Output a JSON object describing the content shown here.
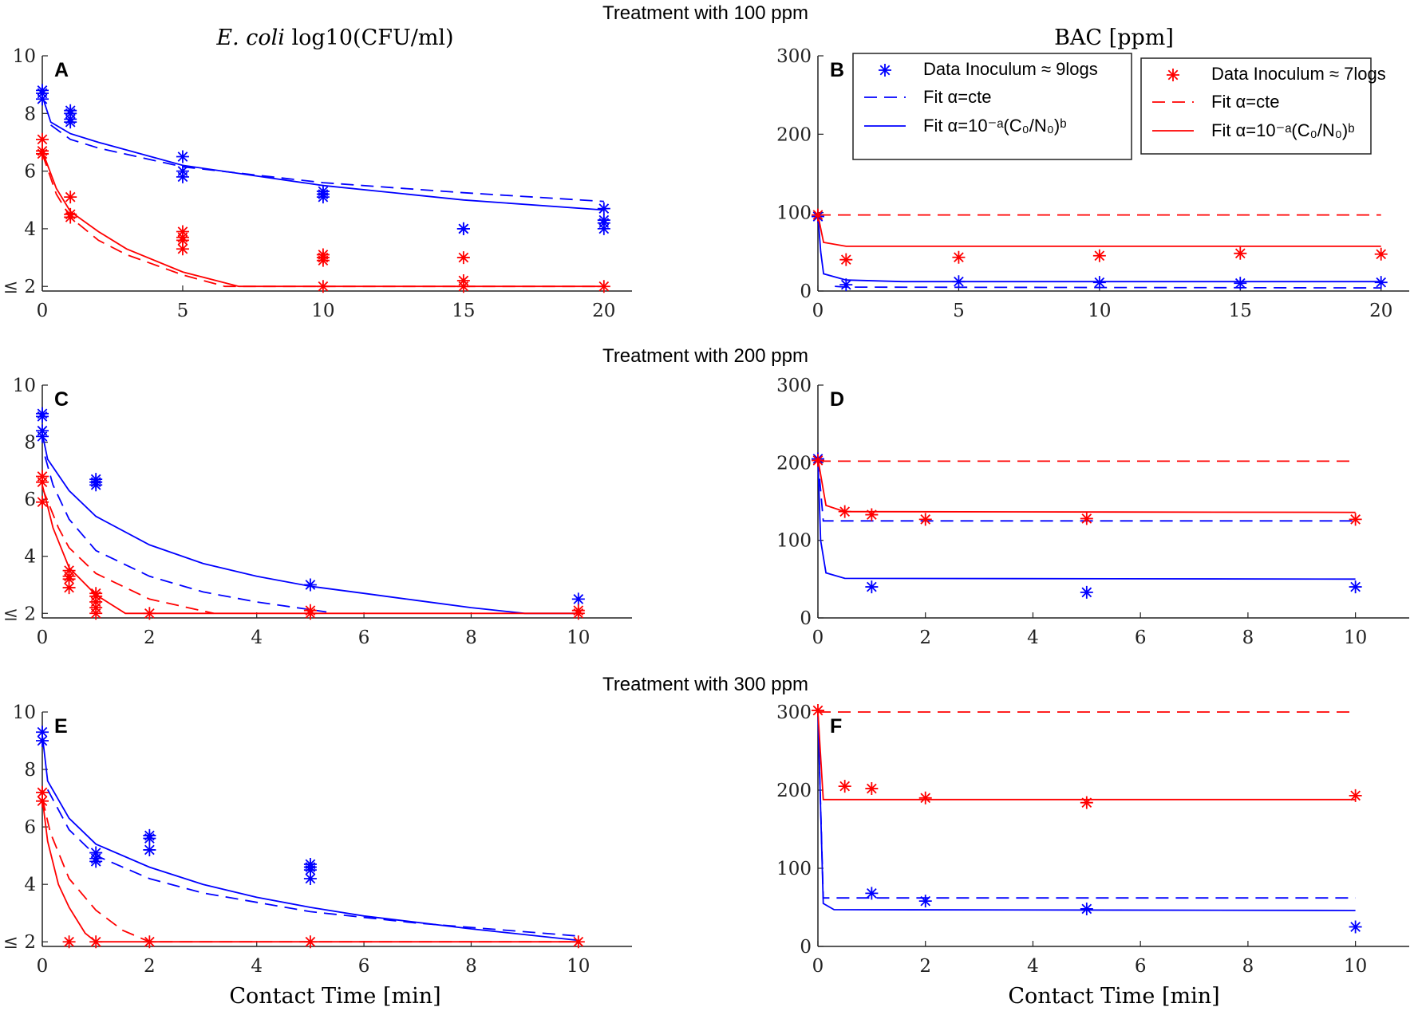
{
  "row_titles": [
    "Treatment with 100 ppm",
    "Treatment with 200 ppm",
    "Treatment with 300 ppm"
  ],
  "col_titles": {
    "left_italic": "E. coli",
    "left_rest": " log10(CFU/ml)",
    "right": "BAC [ppm]"
  },
  "xlabel": "Contact Time [min]",
  "colors": {
    "blue": "#0000ff",
    "red": "#ff0000"
  },
  "legend": [
    {
      "marker_color": "#0000ff",
      "items": [
        "Data Inoculum ≈ 9logs",
        "Fit α=cte",
        "Fit α=10⁻ᵃ(C₀/N₀)ᵇ"
      ]
    },
    {
      "marker_color": "#ff0000",
      "items": [
        "Data Inoculum ≈ 7logs",
        "Fit α=cte",
        "Fit α=10⁻ᵃ(C₀/N₀)ᵇ"
      ]
    }
  ],
  "chart_data": [
    {
      "id": "A",
      "type": "scatter+line",
      "row": 0,
      "col": 0,
      "xlim": [
        0,
        21
      ],
      "ylim": [
        1.84,
        10
      ],
      "xticks": [
        0,
        5,
        10,
        15,
        20
      ],
      "yticks": [
        2,
        4,
        6,
        8,
        10
      ],
      "ytick_labels": [
        "≤ 2",
        "4",
        "6",
        "8",
        "10"
      ],
      "series": [
        {
          "name": "Data Inoculum ≈ 9logs",
          "color": "blue",
          "kind": "points",
          "x": [
            0,
            0,
            0,
            1,
            1,
            1,
            1,
            5,
            5,
            5,
            10,
            10,
            10,
            15,
            15,
            20,
            20,
            20,
            20
          ],
          "y": [
            8.8,
            8.7,
            8.5,
            8.1,
            8.0,
            7.8,
            7.7,
            6.5,
            6.0,
            5.8,
            5.3,
            5.2,
            5.1,
            4.0,
            4.0,
            4.7,
            4.3,
            4.2,
            4.0
          ]
        },
        {
          "name": "Data Inoculum ≈ 7logs",
          "color": "red",
          "kind": "points",
          "x": [
            0,
            0,
            0,
            1,
            1,
            1,
            5,
            5,
            5,
            5,
            10,
            10,
            10,
            10,
            15,
            15,
            15,
            20
          ],
          "y": [
            7.1,
            6.7,
            6.6,
            5.1,
            4.5,
            4.4,
            3.9,
            3.7,
            3.6,
            3.3,
            3.1,
            3.0,
            2.9,
            2.0,
            3.0,
            2.2,
            2.0,
            2.0
          ]
        },
        {
          "name": "Fit α=cte (9logs)",
          "color": "blue",
          "kind": "dash",
          "x": [
            0.3,
            1,
            2,
            5,
            10,
            15,
            20
          ],
          "y": [
            7.6,
            7.1,
            6.8,
            6.15,
            5.6,
            5.25,
            4.95
          ]
        },
        {
          "name": "Fit α=10^-a(C0/N0)^b (9logs)",
          "color": "blue",
          "kind": "solid",
          "x": [
            0,
            0.3,
            1,
            2,
            5,
            10,
            15,
            20
          ],
          "y": [
            8.6,
            7.7,
            7.3,
            7.0,
            6.2,
            5.5,
            5.0,
            4.65
          ]
        },
        {
          "name": "Fit α=cte (7logs)",
          "color": "red",
          "kind": "dash",
          "x": [
            0,
            0.5,
            1,
            2,
            3,
            5,
            6.5,
            20
          ],
          "y": [
            6.6,
            5.2,
            4.4,
            3.6,
            3.1,
            2.4,
            2.0,
            2.0
          ]
        },
        {
          "name": "Fit α=10^-a(C0/N0)^b (7logs)",
          "color": "red",
          "kind": "solid",
          "x": [
            0,
            0.5,
            1,
            2,
            3,
            5,
            7,
            20
          ],
          "y": [
            6.7,
            5.4,
            4.6,
            3.9,
            3.3,
            2.5,
            2.0,
            2.0
          ]
        }
      ]
    },
    {
      "id": "B",
      "type": "scatter+line",
      "row": 0,
      "col": 1,
      "xlim": [
        0,
        21
      ],
      "ylim": [
        0,
        300
      ],
      "xticks": [
        0,
        5,
        10,
        15,
        20
      ],
      "yticks": [
        0,
        100,
        200,
        300
      ],
      "ytick_labels": [
        "0",
        "100",
        "200",
        "300"
      ],
      "series": [
        {
          "name": "Data Inoculum ≈ 9logs",
          "color": "blue",
          "kind": "points",
          "x": [
            0,
            1,
            5,
            10,
            15,
            20
          ],
          "y": [
            95,
            8,
            12,
            11,
            10,
            11
          ]
        },
        {
          "name": "Data Inoculum ≈ 7logs",
          "color": "red",
          "kind": "points",
          "x": [
            0,
            1,
            5,
            10,
            15,
            20
          ],
          "y": [
            97,
            40,
            43,
            45,
            48,
            47
          ]
        },
        {
          "name": "Fit α=cte (9logs)",
          "color": "blue",
          "kind": "dash",
          "x": [
            0.6,
            1,
            20
          ],
          "y": [
            6,
            5,
            4
          ]
        },
        {
          "name": "Fit α=10^-a(C0/N0)^b (9logs)",
          "color": "blue",
          "kind": "solid",
          "x": [
            0,
            0.1,
            0.2,
            1,
            3,
            20
          ],
          "y": [
            97,
            50,
            22,
            14,
            12,
            12
          ]
        },
        {
          "name": "Fit α=cte (7logs)",
          "color": "red",
          "kind": "dash",
          "x": [
            0,
            20
          ],
          "y": [
            97,
            97
          ]
        },
        {
          "name": "Fit α=10^-a(C0/N0)^b (7logs)",
          "color": "red",
          "kind": "solid",
          "x": [
            0,
            0.2,
            1,
            20
          ],
          "y": [
            97,
            62,
            57,
            57
          ]
        }
      ]
    },
    {
      "id": "C",
      "type": "scatter+line",
      "row": 1,
      "col": 0,
      "xlim": [
        0,
        11
      ],
      "ylim": [
        1.84,
        10
      ],
      "xticks": [
        0,
        2,
        4,
        6,
        8,
        10
      ],
      "yticks": [
        2,
        4,
        6,
        8,
        10
      ],
      "ytick_labels": [
        "≤ 2",
        "4",
        "6",
        "8",
        "10"
      ],
      "series": [
        {
          "name": "Data Inoculum ≈ 9logs",
          "color": "blue",
          "kind": "points",
          "x": [
            0,
            0,
            0,
            0,
            1,
            1,
            1,
            5,
            10
          ],
          "y": [
            9.0,
            8.9,
            8.4,
            8.2,
            6.7,
            6.6,
            6.5,
            3.0,
            2.5
          ]
        },
        {
          "name": "Data Inoculum ≈ 7logs",
          "color": "red",
          "kind": "points",
          "x": [
            0,
            0,
            0,
            0.5,
            0.5,
            0.5,
            0.5,
            1,
            1,
            1,
            1,
            1,
            2,
            5,
            5,
            10,
            10
          ],
          "y": [
            6.8,
            6.6,
            5.9,
            3.5,
            3.3,
            3.2,
            2.9,
            2.7,
            2.6,
            2.4,
            2.2,
            2.0,
            2.0,
            2.0,
            2.1,
            2.0,
            2.1
          ]
        },
        {
          "name": "Fit α=cte (9logs)",
          "color": "blue",
          "kind": "dash",
          "x": [
            0.05,
            0.2,
            0.5,
            1,
            2,
            3,
            4,
            5.3
          ],
          "y": [
            7.5,
            6.5,
            5.3,
            4.2,
            3.3,
            2.75,
            2.4,
            2.05
          ]
        },
        {
          "name": "Fit α=10^-a(C0/N0)^b (9logs)",
          "color": "blue",
          "kind": "solid",
          "x": [
            0,
            0.1,
            0.5,
            1,
            2,
            3,
            4,
            5,
            6,
            7,
            8,
            9,
            10
          ],
          "y": [
            8.3,
            7.4,
            6.3,
            5.4,
            4.4,
            3.75,
            3.3,
            2.95,
            2.7,
            2.45,
            2.2,
            2.0,
            2.0
          ]
        },
        {
          "name": "Fit α=cte (7logs)",
          "color": "red",
          "kind": "dash",
          "x": [
            0,
            0.3,
            0.5,
            1,
            2,
            3.2
          ],
          "y": [
            6.4,
            5.0,
            4.3,
            3.4,
            2.5,
            2.0
          ]
        },
        {
          "name": "Fit α=10^-a(C0/N0)^b (7logs)",
          "color": "red",
          "kind": "solid",
          "x": [
            0,
            0.2,
            0.5,
            1,
            1.55,
            10
          ],
          "y": [
            6.5,
            5.0,
            3.6,
            2.65,
            2.0,
            2.0
          ]
        }
      ]
    },
    {
      "id": "D",
      "type": "scatter+line",
      "row": 1,
      "col": 1,
      "xlim": [
        0,
        11
      ],
      "ylim": [
        0,
        300
      ],
      "xticks": [
        0,
        2,
        4,
        6,
        8,
        10
      ],
      "yticks": [
        0,
        100,
        200,
        300
      ],
      "ytick_labels": [
        "0",
        "100",
        "200",
        "300"
      ],
      "series": [
        {
          "name": "Data Inoculum ≈ 9logs",
          "color": "blue",
          "kind": "points",
          "x": [
            0,
            1,
            5,
            10
          ],
          "y": [
            205,
            40,
            33,
            40
          ]
        },
        {
          "name": "Data Inoculum ≈ 7logs",
          "color": "red",
          "kind": "points",
          "x": [
            0,
            0.5,
            1,
            2,
            5,
            10
          ],
          "y": [
            203,
            137,
            133,
            127,
            128,
            127
          ]
        },
        {
          "name": "Fit α=cte (9logs)",
          "color": "blue",
          "kind": "dash",
          "x": [
            0,
            0.1,
            10
          ],
          "y": [
            205,
            125,
            125
          ]
        },
        {
          "name": "Fit α=10^-a(C0/N0)^b (9logs)",
          "color": "blue",
          "kind": "solid",
          "x": [
            0,
            0.05,
            0.15,
            0.5,
            10
          ],
          "y": [
            205,
            100,
            58,
            51,
            50
          ]
        },
        {
          "name": "Fit α=cte (7logs)",
          "color": "red",
          "kind": "dash",
          "x": [
            0,
            10
          ],
          "y": [
            202,
            202
          ]
        },
        {
          "name": "Fit α=10^-a(C0/N0)^b (7logs)",
          "color": "red",
          "kind": "solid",
          "x": [
            0,
            0.15,
            0.5,
            10
          ],
          "y": [
            205,
            145,
            137,
            136
          ]
        }
      ]
    },
    {
      "id": "E",
      "type": "scatter+line",
      "row": 2,
      "col": 0,
      "xlim": [
        0,
        11
      ],
      "ylim": [
        1.84,
        10
      ],
      "xticks": [
        0,
        2,
        4,
        6,
        8,
        10
      ],
      "yticks": [
        2,
        4,
        6,
        8,
        10
      ],
      "ytick_labels": [
        "≤ 2",
        "4",
        "6",
        "8",
        "10"
      ],
      "series": [
        {
          "name": "Data Inoculum ≈ 9logs",
          "color": "blue",
          "kind": "points",
          "x": [
            0,
            0,
            1,
            1,
            1,
            2,
            2,
            2,
            5,
            5,
            5,
            5
          ],
          "y": [
            9.3,
            9.0,
            5.1,
            4.9,
            4.8,
            5.7,
            5.6,
            5.2,
            4.7,
            4.6,
            4.5,
            4.2
          ]
        },
        {
          "name": "Data Inoculum ≈ 7logs",
          "color": "red",
          "kind": "points",
          "x": [
            0,
            0,
            0.5,
            1,
            2,
            5,
            10
          ],
          "y": [
            7.2,
            6.9,
            2.0,
            2.0,
            2.0,
            2.0,
            2.0
          ]
        },
        {
          "name": "Fit α=cte (9logs)",
          "color": "blue",
          "kind": "dash",
          "x": [
            0.1,
            0.5,
            1,
            2,
            3,
            5,
            7,
            10
          ],
          "y": [
            7.3,
            5.9,
            5.0,
            4.2,
            3.7,
            3.05,
            2.65,
            2.2
          ]
        },
        {
          "name": "Fit α=10^-a(C0/N0)^b (9logs)",
          "color": "blue",
          "kind": "solid",
          "x": [
            0,
            0.1,
            0.5,
            1,
            2,
            3,
            4,
            5,
            6,
            8,
            10
          ],
          "y": [
            9.2,
            7.6,
            6.3,
            5.4,
            4.6,
            4.0,
            3.55,
            3.2,
            2.9,
            2.45,
            2.05
          ]
        },
        {
          "name": "Fit α=cte (7logs)",
          "color": "red",
          "kind": "dash",
          "x": [
            0,
            0.15,
            0.5,
            1,
            1.5,
            2,
            10
          ],
          "y": [
            7.0,
            5.8,
            4.2,
            3.1,
            2.4,
            2.0,
            2.0
          ]
        },
        {
          "name": "Fit α=10^-a(C0/N0)^b (7logs)",
          "color": "red",
          "kind": "solid",
          "x": [
            0,
            0.1,
            0.3,
            0.5,
            0.8,
            1,
            10
          ],
          "y": [
            7.0,
            5.5,
            4.0,
            3.2,
            2.3,
            2.0,
            2.0
          ]
        }
      ]
    },
    {
      "id": "F",
      "type": "scatter+line",
      "row": 2,
      "col": 1,
      "xlim": [
        0,
        11
      ],
      "ylim": [
        0,
        300
      ],
      "xticks": [
        0,
        2,
        4,
        6,
        8,
        10
      ],
      "yticks": [
        0,
        100,
        200,
        300
      ],
      "ytick_labels": [
        "0",
        "100",
        "200",
        "300"
      ],
      "series": [
        {
          "name": "Data Inoculum ≈ 9logs",
          "color": "blue",
          "kind": "points",
          "x": [
            1,
            2,
            5,
            10
          ],
          "y": [
            68,
            58,
            48,
            25
          ]
        },
        {
          "name": "Data Inoculum ≈ 7logs",
          "color": "red",
          "kind": "points",
          "x": [
            0,
            0.5,
            1,
            2,
            5,
            10
          ],
          "y": [
            302,
            205,
            202,
            190,
            184,
            193
          ]
        },
        {
          "name": "Fit α=cte (9logs)",
          "color": "blue",
          "kind": "dash",
          "x": [
            0,
            0.1,
            10
          ],
          "y": [
            300,
            62,
            62
          ]
        },
        {
          "name": "Fit α=10^-a(C0/N0)^b (9logs)",
          "color": "blue",
          "kind": "solid",
          "x": [
            0,
            0.1,
            0.3,
            10
          ],
          "y": [
            300,
            55,
            47,
            46
          ]
        },
        {
          "name": "Fit α=cte (7logs)",
          "color": "red",
          "kind": "dash",
          "x": [
            0,
            10
          ],
          "y": [
            300,
            300
          ]
        },
        {
          "name": "Fit α=10^-a(C0/N0)^b (7logs)",
          "color": "red",
          "kind": "solid",
          "x": [
            0,
            0.1,
            10
          ],
          "y": [
            300,
            188,
            188
          ]
        }
      ]
    }
  ]
}
